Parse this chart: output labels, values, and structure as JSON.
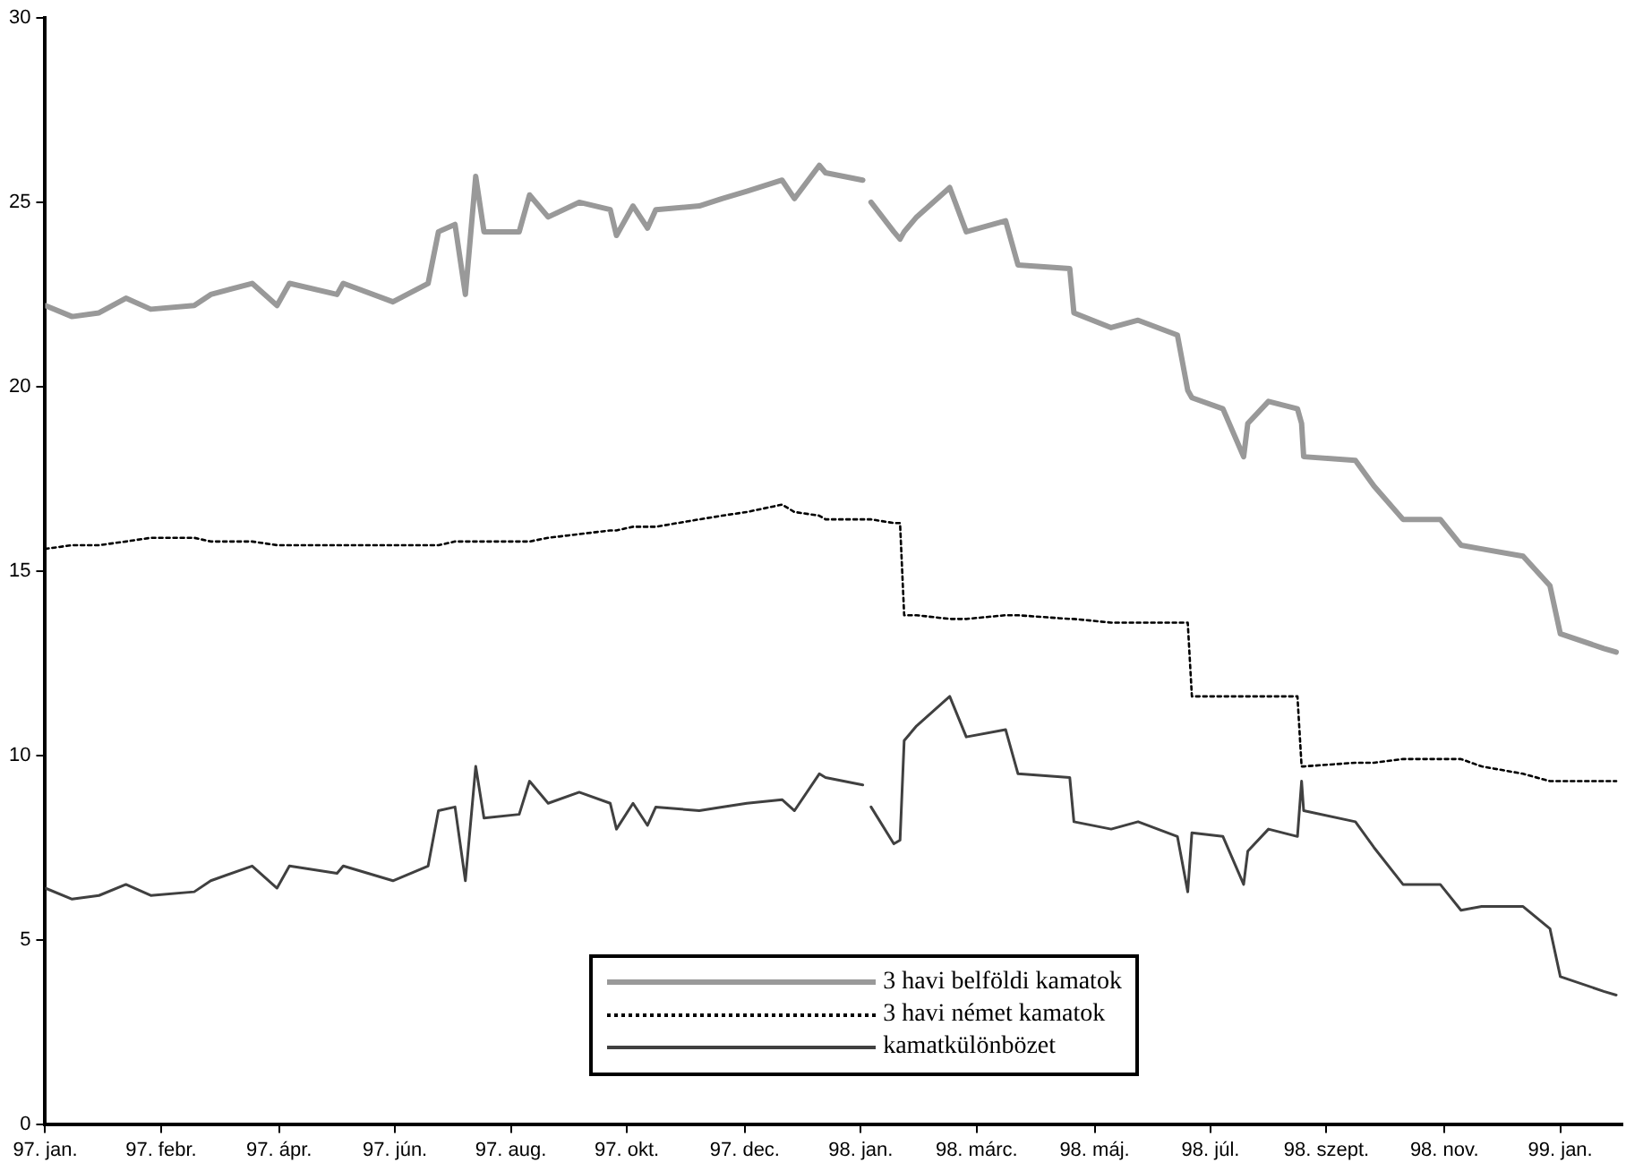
{
  "chart_data": {
    "type": "line",
    "x": [
      "1997-01-02",
      "1997-01-15",
      "1997-01-28",
      "1997-02-10",
      "1997-02-22",
      "1997-03-15",
      "1997-03-23",
      "1997-04-12",
      "1997-04-24",
      "1997-04-30",
      "1997-05-23",
      "1997-05-26",
      "1997-06-19",
      "1997-07-06",
      "1997-07-11",
      "1997-07-19",
      "1997-07-24",
      "1997-07-29",
      "1997-08-02",
      "1997-08-19",
      "1997-08-24",
      "1997-09-02",
      "1997-09-17",
      "1997-10-02",
      "1997-10-05",
      "1997-10-13",
      "1997-10-20",
      "1997-10-24",
      "1997-11-14",
      "1997-11-25",
      "1997-12-07",
      "1997-12-24",
      "1997-12-30",
      "1998-01-11",
      "1998-01-14",
      "1998-02-01",
      "1998-02-04",
      "1998-02-05",
      "1998-02-16",
      "1998-02-19",
      "1998-02-21",
      "1998-02-27",
      "1998-03-15",
      "1998-03-23",
      "1998-04-11",
      "1998-04-17",
      "1998-05-12",
      "1998-05-14",
      "1998-06-01",
      "1998-06-14",
      "1998-07-03",
      "1998-07-08",
      "1998-07-10",
      "1998-07-25",
      "1998-08-04",
      "1998-08-06",
      "1998-08-16",
      "1998-08-30",
      "1998-09-01",
      "1998-09-02",
      "1998-09-27",
      "1998-10-06",
      "1998-10-20",
      "1998-11-07",
      "1998-11-17",
      "1998-11-27",
      "1998-12-17",
      "1998-12-30",
      "1999-01-04",
      "1999-01-25",
      "1999-01-31"
    ],
    "series": [
      {
        "name": "3 havi belföldi kamatok",
        "color": "#999999",
        "values": [
          22.2,
          21.9,
          22.0,
          22.4,
          22.1,
          22.2,
          22.5,
          22.8,
          22.2,
          22.8,
          22.5,
          22.8,
          22.3,
          22.8,
          24.2,
          24.4,
          22.5,
          25.7,
          24.2,
          24.2,
          25.2,
          24.6,
          25.0,
          24.8,
          24.1,
          24.9,
          24.3,
          24.8,
          24.9,
          25.1,
          25.3,
          25.6,
          25.1,
          26.0,
          25.8,
          25.6,
          null,
          25.0,
          24.2,
          24.0,
          24.2,
          24.6,
          25.4,
          24.2,
          24.5,
          23.3,
          23.2,
          22.0,
          21.6,
          21.8,
          21.4,
          19.9,
          19.7,
          19.4,
          18.1,
          19.0,
          19.6,
          19.4,
          19.0,
          18.1,
          18.0,
          17.3,
          16.4,
          16.4,
          15.7,
          15.6,
          15.4,
          14.6,
          13.3,
          12.9,
          12.8
        ]
      },
      {
        "name": "3 havi német kamatok",
        "color": "#000000",
        "line_style": "dotted",
        "values": [
          15.6,
          15.7,
          15.7,
          15.8,
          15.9,
          15.9,
          15.8,
          15.8,
          15.7,
          15.7,
          15.7,
          15.7,
          15.7,
          15.7,
          15.7,
          15.8,
          15.8,
          15.8,
          15.8,
          15.8,
          15.8,
          15.9,
          16.0,
          16.1,
          16.1,
          16.2,
          16.2,
          16.2,
          16.4,
          16.5,
          16.6,
          16.8,
          16.6,
          16.5,
          16.4,
          16.4,
          16.4,
          16.4,
          16.3,
          16.3,
          13.8,
          13.8,
          13.7,
          13.7,
          13.8,
          13.8,
          13.7,
          13.7,
          13.6,
          13.6,
          13.6,
          13.6,
          11.6,
          11.6,
          11.6,
          11.6,
          11.6,
          11.6,
          9.7,
          9.7,
          9.8,
          9.8,
          9.9,
          9.9,
          9.9,
          9.7,
          9.5,
          9.3,
          9.3,
          9.3,
          9.3
        ]
      },
      {
        "name": "kamatkülönbözet",
        "color": "#404040",
        "values": [
          6.4,
          6.1,
          6.2,
          6.5,
          6.2,
          6.3,
          6.6,
          7.0,
          6.4,
          7.0,
          6.8,
          7.0,
          6.6,
          7.0,
          8.5,
          8.6,
          6.6,
          9.7,
          8.3,
          8.4,
          9.3,
          8.7,
          9.0,
          8.7,
          8.0,
          8.7,
          8.1,
          8.6,
          8.5,
          8.6,
          8.7,
          8.8,
          8.5,
          9.5,
          9.4,
          9.2,
          null,
          8.6,
          7.6,
          7.7,
          10.4,
          10.8,
          11.6,
          10.5,
          10.7,
          9.5,
          9.4,
          8.2,
          8.0,
          8.2,
          7.8,
          6.3,
          7.9,
          7.8,
          6.5,
          7.4,
          8.0,
          7.8,
          9.3,
          8.5,
          8.2,
          7.5,
          6.5,
          6.5,
          5.8,
          5.9,
          5.9,
          5.3,
          4.0,
          3.6,
          3.5
        ]
      }
    ],
    "xlim": [
      "1997-01-02",
      "1999-02-03"
    ],
    "xticks": [
      {
        "value": "1997-01-02",
        "label": "97. jan."
      },
      {
        "value": "1997-02-27",
        "label": "97. febr."
      },
      {
        "value": "1997-04-25",
        "label": "97. ápr."
      },
      {
        "value": "1997-06-20",
        "label": "97. jún."
      },
      {
        "value": "1997-08-15",
        "label": "97. aug."
      },
      {
        "value": "1997-10-10",
        "label": "97. okt."
      },
      {
        "value": "1997-12-06",
        "label": "97. dec."
      },
      {
        "value": "1998-01-31",
        "label": "98. jan."
      },
      {
        "value": "1998-03-28",
        "label": "98. márc."
      },
      {
        "value": "1998-05-24",
        "label": "98. máj."
      },
      {
        "value": "1998-07-19",
        "label": "98. júl."
      },
      {
        "value": "1998-09-13",
        "label": "98. szept."
      },
      {
        "value": "1998-11-09",
        "label": "98. nov."
      },
      {
        "value": "1999-01-04",
        "label": "99. jan."
      }
    ],
    "ylim": [
      0,
      30
    ],
    "yticks": [
      0,
      5,
      10,
      15,
      20,
      25,
      30
    ],
    "grid": false,
    "legend": "bottom",
    "marker": "none"
  }
}
